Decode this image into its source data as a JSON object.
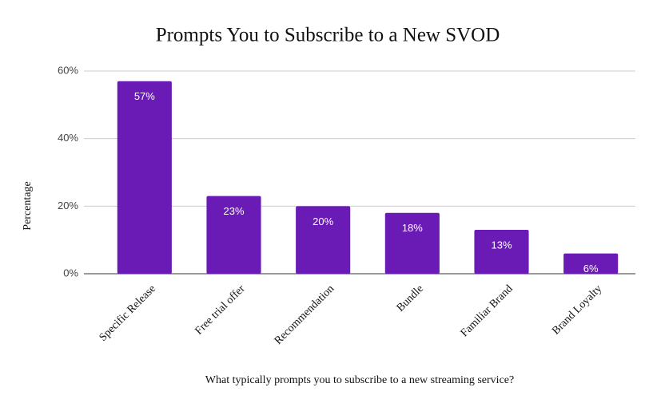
{
  "chart_data": {
    "type": "bar",
    "title": "Prompts You to Subscribe to a New SVOD",
    "x_label": "What typically prompts you to subscribe to a new streaming service?",
    "y_label": "Percentage",
    "categories": [
      "Specific Release",
      "Free trial offer",
      "Recommendation",
      "Bundle",
      "Familiar Brand",
      "Brand Loyalty"
    ],
    "values": [
      57,
      23,
      20,
      18,
      13,
      6
    ],
    "value_labels": [
      "57%",
      "23%",
      "20%",
      "18%",
      "13%",
      "6%"
    ],
    "color": "#6a1bb5",
    "ylim": [
      0,
      60
    ],
    "yticks": [
      {
        "value": 0,
        "label": "0%"
      },
      {
        "value": 20,
        "label": "20%"
      },
      {
        "value": 40,
        "label": "40%"
      },
      {
        "value": 60,
        "label": "60%"
      }
    ],
    "grid": true
  }
}
